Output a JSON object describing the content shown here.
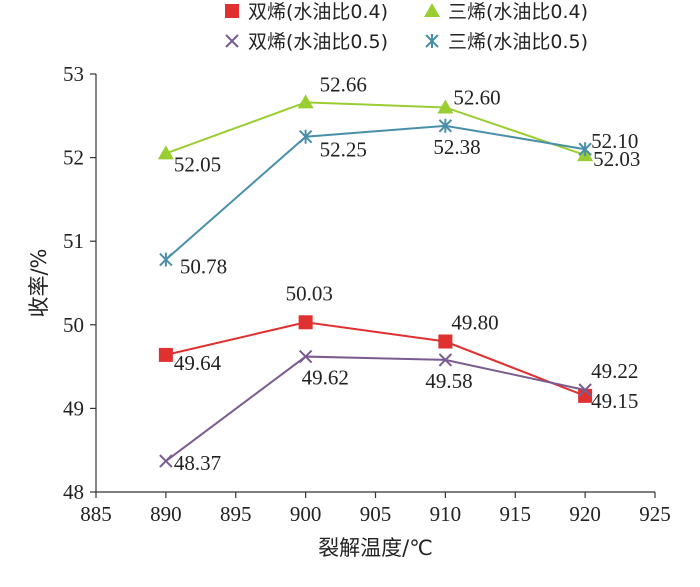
{
  "chart_data": {
    "type": "line",
    "xlabel": "裂解温度/℃",
    "ylabel": "收率/%",
    "xlim": [
      885,
      925
    ],
    "ylim": [
      48,
      53
    ],
    "x_ticks": [
      885,
      890,
      895,
      900,
      905,
      910,
      915,
      920,
      925
    ],
    "y_ticks": [
      48,
      49,
      50,
      51,
      52,
      53
    ],
    "grid": false,
    "legend_position": "top",
    "x": [
      890,
      900,
      910,
      920
    ],
    "series": [
      {
        "name": "双烯(水油比0.4)",
        "values": [
          49.64,
          50.03,
          49.8,
          49.15
        ],
        "labels": [
          "49.64",
          "50.03",
          "49.80",
          "49.15"
        ],
        "color": "#e03030",
        "line_color": "#e03030",
        "marker": "square"
      },
      {
        "name": "三烯(水油比0.4)",
        "values": [
          52.05,
          52.66,
          52.6,
          52.03
        ],
        "labels": [
          "52.05",
          "52.66",
          "52.60",
          "52.03"
        ],
        "color": "#9acd32",
        "line_color": "#9acd32",
        "marker": "triangle"
      },
      {
        "name": "双烯(水油比0.5)",
        "values": [
          48.37,
          49.62,
          49.58,
          49.22
        ],
        "labels": [
          "48.37",
          "49.62",
          "49.58",
          "49.22"
        ],
        "color": "#7a5c8e",
        "line_color": "#7a5c8e",
        "marker": "x"
      },
      {
        "name": "三烯(水油比0.5)",
        "values": [
          50.78,
          52.25,
          52.38,
          52.1
        ],
        "labels": [
          "50.78",
          "52.25",
          "52.38",
          "52.10"
        ],
        "color": "#4a8fa8",
        "line_color": "#4a8fa8",
        "marker": "asterisk"
      }
    ]
  }
}
